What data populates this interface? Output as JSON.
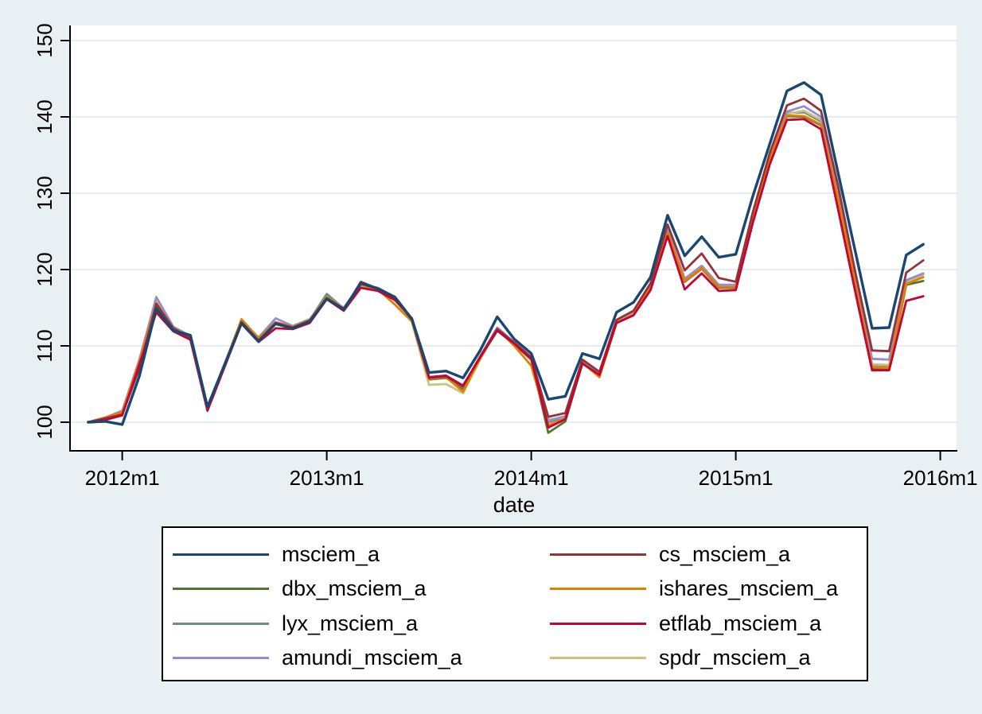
{
  "figure": {
    "background_color": "#e9f0f3",
    "plot_background_color": "#ffffff",
    "grid_color": "#e4edf1",
    "axis_color": "#000000"
  },
  "chart_data": {
    "type": "line",
    "title": "",
    "xlabel": "date",
    "ylabel": "",
    "grid": "horizontal",
    "legend_position": "bottom",
    "ylim": [
      96,
      152
    ],
    "x_tick_labels": [
      "2012m1",
      "2013m1",
      "2014m1",
      "2015m1",
      "2016m1"
    ],
    "y_tick_labels": [
      "100",
      "110",
      "120",
      "130",
      "140",
      "150"
    ],
    "x": [
      "2011m11",
      "2011m12",
      "2012m1",
      "2012m2",
      "2012m3",
      "2012m4",
      "2012m5",
      "2012m6",
      "2012m7",
      "2012m8",
      "2012m9",
      "2012m10",
      "2012m11",
      "2012m12",
      "2013m1",
      "2013m2",
      "2013m3",
      "2013m4",
      "2013m5",
      "2013m6",
      "2013m7",
      "2013m8",
      "2013m9",
      "2013m10",
      "2013m11",
      "2013m12",
      "2014m1",
      "2014m2",
      "2014m3",
      "2014m4",
      "2014m5",
      "2014m6",
      "2014m7",
      "2014m8",
      "2014m9",
      "2014m10",
      "2014m11",
      "2014m12",
      "2015m1",
      "2015m2",
      "2015m3",
      "2015m4",
      "2015m5",
      "2015m6",
      "2015m7",
      "2015m8",
      "2015m9",
      "2015m10",
      "2015m11",
      "2015m12"
    ],
    "z_order": [
      2,
      4,
      7,
      6,
      3,
      1,
      5,
      0
    ],
    "series": [
      {
        "name": "msciem_a",
        "color": "#1a476f",
        "values": [
          100.0,
          100.1,
          99.7,
          106.0,
          114.9,
          112.0,
          111.4,
          102.0,
          107.5,
          113.0,
          110.6,
          112.9,
          112.3,
          113.2,
          116.2,
          114.8,
          118.2,
          117.5,
          116.4,
          113.5,
          106.5,
          106.7,
          105.8,
          109.4,
          113.8,
          110.9,
          109.0,
          103.0,
          103.4,
          109.0,
          108.3,
          114.4,
          115.7,
          119.0,
          127.1,
          121.8,
          124.3,
          121.6,
          122.0,
          129.6,
          136.5,
          143.4,
          144.5,
          142.9,
          132.7,
          122.5,
          112.3,
          112.4,
          121.9,
          123.3
        ]
      },
      {
        "name": "cs_msciem_a",
        "color": "#90353b",
        "values": [
          100.0,
          100.5,
          101.0,
          107.0,
          115.5,
          112.3,
          111.0,
          101.8,
          107.4,
          113.1,
          110.7,
          113.0,
          112.4,
          113.3,
          116.2,
          114.7,
          118.4,
          117.5,
          116.3,
          113.4,
          105.8,
          106.0,
          104.7,
          108.6,
          112.2,
          110.4,
          108.5,
          100.7,
          101.2,
          108.2,
          106.6,
          113.4,
          114.6,
          118.2,
          125.9,
          119.9,
          122.1,
          118.9,
          118.4,
          127.5,
          135.3,
          141.5,
          142.4,
          140.8,
          131.0,
          119.8,
          109.4,
          109.3,
          119.6,
          121.2
        ]
      },
      {
        "name": "dbx_msciem_a",
        "color": "#55752f",
        "values": [
          100.0,
          100.5,
          101.2,
          107.4,
          115.4,
          112.1,
          111.0,
          101.7,
          107.3,
          113.1,
          110.9,
          112.9,
          112.3,
          113.2,
          116.3,
          114.7,
          117.9,
          117.3,
          116.1,
          113.2,
          105.6,
          105.8,
          104.4,
          108.3,
          112.0,
          110.2,
          108.2,
          98.6,
          100.1,
          107.7,
          106.1,
          113.1,
          114.2,
          117.8,
          124.9,
          118.4,
          120.1,
          117.6,
          117.6,
          126.7,
          134.4,
          140.1,
          140.0,
          138.9,
          128.9,
          117.9,
          107.0,
          106.9,
          118.0,
          118.5
        ]
      },
      {
        "name": "ishares_msciem_a",
        "color": "#e37e00",
        "values": [
          100.0,
          100.6,
          101.3,
          107.9,
          115.6,
          112.3,
          111.2,
          101.9,
          107.5,
          113.5,
          111.0,
          113.1,
          112.5,
          113.4,
          116.4,
          114.9,
          118.0,
          117.4,
          115.4,
          113.2,
          105.7,
          105.9,
          104.0,
          108.4,
          112.2,
          110.0,
          107.4,
          99.6,
          100.5,
          107.8,
          105.9,
          113.0,
          114.1,
          117.7,
          124.8,
          118.5,
          120.2,
          117.7,
          117.7,
          126.8,
          134.5,
          140.2,
          140.1,
          139.0,
          129.2,
          118.2,
          107.2,
          107.1,
          118.1,
          119.0
        ]
      },
      {
        "name": "lyx_msciem_a",
        "color": "#6e8e84",
        "values": [
          100.0,
          100.6,
          101.3,
          108.0,
          115.7,
          112.4,
          111.2,
          101.9,
          107.5,
          113.2,
          111.0,
          113.1,
          112.5,
          113.4,
          116.8,
          114.9,
          118.1,
          117.5,
          116.3,
          113.4,
          105.8,
          106.0,
          104.6,
          108.5,
          112.2,
          110.4,
          108.4,
          100.0,
          100.7,
          108.0,
          106.4,
          113.3,
          114.4,
          118.0,
          125.1,
          118.7,
          120.4,
          117.9,
          117.9,
          127.0,
          134.7,
          140.5,
          140.6,
          139.4,
          129.5,
          118.5,
          107.5,
          107.4,
          118.5,
          119.4
        ]
      },
      {
        "name": "etflab_msciem_a",
        "color": "#c10534",
        "values": [
          100.0,
          100.3,
          100.9,
          107.5,
          114.4,
          111.9,
          110.8,
          101.5,
          107.2,
          112.9,
          110.5,
          112.3,
          112.2,
          113.0,
          116.1,
          114.6,
          117.6,
          117.2,
          116.0,
          113.6,
          105.9,
          106.1,
          104.8,
          108.5,
          112.0,
          110.3,
          108.3,
          99.3,
          100.4,
          107.7,
          106.2,
          113.0,
          114.0,
          117.3,
          124.4,
          117.4,
          119.5,
          117.2,
          117.3,
          126.1,
          133.8,
          139.6,
          139.7,
          138.4,
          127.9,
          117.2,
          106.8,
          106.8,
          115.9,
          116.5
        ]
      },
      {
        "name": "amundi_msciem_a",
        "color": "#938dd2",
        "values": [
          100.0,
          100.6,
          101.5,
          108.1,
          116.4,
          112.5,
          111.3,
          102.0,
          107.6,
          113.3,
          111.1,
          113.6,
          112.6,
          113.5,
          116.4,
          115.0,
          118.1,
          117.6,
          116.4,
          113.4,
          105.9,
          106.1,
          104.7,
          108.6,
          112.4,
          110.5,
          108.5,
          100.2,
          100.8,
          108.1,
          106.5,
          113.4,
          114.5,
          118.1,
          125.2,
          118.8,
          120.5,
          118.0,
          118.0,
          127.1,
          134.8,
          140.7,
          141.4,
          140.0,
          130.0,
          118.9,
          108.3,
          108.2,
          118.6,
          119.5
        ]
      },
      {
        "name": "spdr_msciem_a",
        "color": "#cac27e",
        "values": [
          100.0,
          100.6,
          101.4,
          108.2,
          116.1,
          112.4,
          111.2,
          101.9,
          107.6,
          113.3,
          111.0,
          113.1,
          112.5,
          113.3,
          116.3,
          114.8,
          117.8,
          117.3,
          116.1,
          113.1,
          104.9,
          105.0,
          103.8,
          108.2,
          112.1,
          110.3,
          108.3,
          100.3,
          100.7,
          107.9,
          106.3,
          113.2,
          114.3,
          117.9,
          125.0,
          118.6,
          120.3,
          117.8,
          117.8,
          126.9,
          134.6,
          140.4,
          140.8,
          139.6,
          129.7,
          118.6,
          107.6,
          107.5,
          118.4,
          119.3
        ]
      }
    ]
  },
  "legend": {
    "items": [
      {
        "label": "msciem_a",
        "color": "#1a476f"
      },
      {
        "label": "cs_msciem_a",
        "color": "#90353b"
      },
      {
        "label": "dbx_msciem_a",
        "color": "#55752f"
      },
      {
        "label": "ishares_msciem_a",
        "color": "#e37e00"
      },
      {
        "label": "lyx_msciem_a",
        "color": "#6e8e84"
      },
      {
        "label": "etflab_msciem_a",
        "color": "#c10534"
      },
      {
        "label": "amundi_msciem_a",
        "color": "#938dd2"
      },
      {
        "label": "spdr_msciem_a",
        "color": "#cac27e"
      }
    ]
  }
}
